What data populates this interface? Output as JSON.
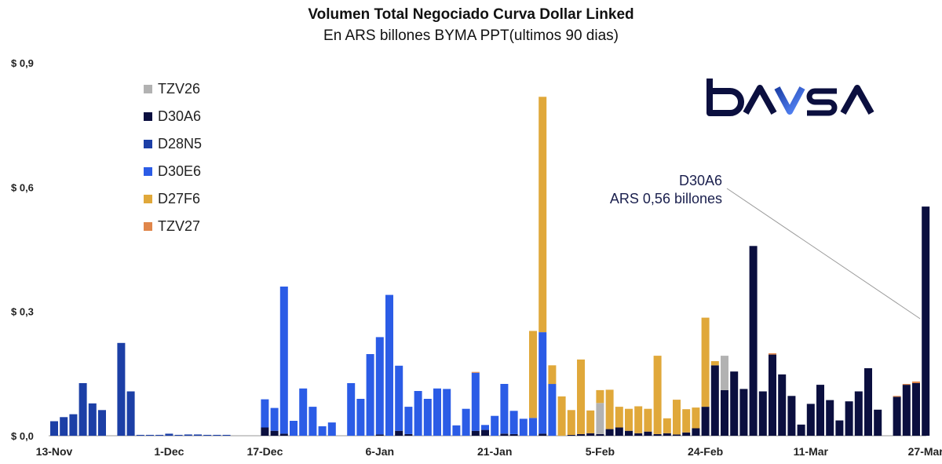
{
  "chart_data": {
    "type": "bar",
    "stacked": true,
    "title": "Volumen Total Negociado Curva Dollar Linked",
    "subtitle": "En ARS billones BYMA PPT(ultimos 90 dias)",
    "xlabel": "",
    "ylabel": "",
    "ylim": [
      0,
      0.9
    ],
    "yticks": [
      "$ 0,9",
      "$ 0,6",
      "$ 0,3",
      "$ 0,0"
    ],
    "ytick_values": [
      0.9,
      0.6,
      0.3,
      0.0
    ],
    "xtick_labels": [
      "13-Nov",
      "1-Dec",
      "17-Dec",
      "6-Jan",
      "21-Jan",
      "5-Feb",
      "24-Feb",
      "11-Mar",
      "27-Mar"
    ],
    "xtick_index": [
      0,
      12,
      22,
      34,
      46,
      57,
      68,
      79,
      91
    ],
    "series": [
      {
        "name": "TZV26",
        "color": "#b2b2b2",
        "values": [
          0,
          0,
          0,
          0,
          0,
          0,
          0,
          0,
          0,
          0,
          0,
          0,
          0,
          0,
          0,
          0,
          0,
          0,
          0,
          0,
          0,
          0,
          0,
          0,
          0,
          0,
          0,
          0,
          0,
          0,
          0,
          0,
          0,
          0,
          0,
          0,
          0,
          0,
          0,
          0,
          0,
          0,
          0,
          0,
          0,
          0,
          0,
          0,
          0,
          0,
          0,
          0,
          0,
          0,
          0,
          0,
          0,
          0.075,
          0,
          0,
          0,
          0,
          0,
          0,
          0,
          0,
          0,
          0,
          0,
          0,
          0.083,
          0,
          0,
          0,
          0,
          0,
          0,
          0,
          0,
          0,
          0,
          0,
          0,
          0,
          0,
          0,
          0,
          0,
          0,
          0,
          0,
          0
        ]
      },
      {
        "name": "D30A6",
        "color": "#0b0f3f",
        "values": [
          0,
          0,
          0,
          0,
          0,
          0,
          0,
          0,
          0,
          0,
          0,
          0,
          0,
          0,
          0,
          0,
          0,
          0,
          0,
          0,
          0,
          0,
          0.02,
          0.012,
          0.005,
          0,
          0,
          0,
          0,
          0,
          0,
          0,
          0,
          0,
          0.003,
          0,
          0.012,
          0.004,
          0,
          0,
          0,
          0,
          0,
          0,
          0.012,
          0.014,
          0,
          0.005,
          0.004,
          0,
          0,
          0.005,
          0,
          0,
          0.002,
          0.004,
          0.006,
          0.004,
          0.016,
          0.02,
          0.012,
          0.006,
          0.01,
          0.004,
          0.006,
          0.003,
          0.008,
          0.018,
          0.07,
          0.17,
          0.11,
          0.155,
          0.113,
          0.458,
          0.107,
          0.196,
          0.148,
          0.096,
          0.027,
          0.077,
          0.123,
          0.086,
          0.037,
          0.083,
          0.107,
          0.163,
          0.063,
          0,
          0.094,
          0.123,
          0.127,
          0.553
        ]
      },
      {
        "name": "D28N5",
        "color": "#1c3fa6",
        "values": [
          0.035,
          0.045,
          0.052,
          0.127,
          0.078,
          0.062,
          0,
          0.224,
          0.107,
          0.002,
          0.002,
          0.002,
          0.005,
          0.002,
          0.003,
          0.003,
          0.002,
          0.002,
          0.002,
          0,
          0,
          0,
          0,
          0,
          0,
          0,
          0,
          0,
          0,
          0,
          0,
          0,
          0,
          0,
          0,
          0,
          0,
          0,
          0,
          0,
          0,
          0,
          0,
          0,
          0,
          0,
          0,
          0,
          0,
          0,
          0,
          0,
          0,
          0,
          0,
          0,
          0,
          0,
          0,
          0,
          0,
          0,
          0,
          0,
          0,
          0,
          0,
          0,
          0,
          0,
          0,
          0,
          0,
          0,
          0,
          0,
          0,
          0,
          0,
          0,
          0,
          0,
          0,
          0,
          0,
          0,
          0,
          0,
          0,
          0,
          0,
          0
        ]
      },
      {
        "name": "D30E6",
        "color": "#2b5ce6",
        "values": [
          0,
          0,
          0,
          0,
          0,
          0,
          0,
          0,
          0,
          0,
          0,
          0,
          0,
          0,
          0,
          0,
          0,
          0,
          0,
          0,
          0,
          0,
          0.068,
          0.055,
          0.355,
          0.036,
          0.114,
          0.07,
          0.023,
          0.032,
          0,
          0.127,
          0.089,
          0.197,
          0.235,
          0.34,
          0.157,
          0.066,
          0.108,
          0.089,
          0.114,
          0.113,
          0.025,
          0.065,
          0.14,
          0.012,
          0.048,
          0.12,
          0.056,
          0.041,
          0.043,
          0.245,
          0.125,
          0,
          0,
          0,
          0,
          0,
          0,
          0,
          0,
          0,
          0,
          0,
          0,
          0,
          0,
          0,
          0,
          0,
          0,
          0,
          0,
          0,
          0,
          0,
          0,
          0,
          0,
          0,
          0,
          0,
          0,
          0,
          0,
          0,
          0,
          0,
          0,
          0,
          0,
          0
        ]
      },
      {
        "name": "D27F6",
        "color": "#e0a83a",
        "values": [
          0,
          0,
          0,
          0,
          0,
          0,
          0,
          0,
          0,
          0,
          0,
          0,
          0,
          0,
          0,
          0,
          0,
          0,
          0,
          0,
          0,
          0,
          0,
          0,
          0,
          0,
          0,
          0,
          0,
          0,
          0,
          0,
          0,
          0,
          0,
          0,
          0,
          0,
          0,
          0,
          0,
          0,
          0,
          0,
          0,
          0,
          0,
          0,
          0,
          0,
          0.21,
          0.568,
          0.045,
          0.095,
          0.06,
          0.18,
          0.055,
          0.031,
          0.095,
          0.05,
          0.053,
          0.065,
          0.055,
          0.189,
          0.036,
          0.084,
          0.056,
          0.05,
          0.215,
          0.01,
          0,
          0,
          0,
          0,
          0,
          0,
          0,
          0,
          0,
          0,
          0,
          0,
          0,
          0,
          0,
          0,
          0,
          0,
          0,
          0,
          0,
          0
        ]
      },
      {
        "name": "TZV27",
        "color": "#e0864a",
        "values": [
          0,
          0,
          0,
          0,
          0,
          0,
          0,
          0,
          0,
          0,
          0,
          0,
          0,
          0,
          0,
          0,
          0,
          0,
          0,
          0,
          0,
          0,
          0,
          0,
          0,
          0,
          0,
          0,
          0,
          0,
          0,
          0,
          0,
          0,
          0,
          0,
          0,
          0,
          0,
          0,
          0,
          0,
          0,
          0,
          0.002,
          0,
          0,
          0,
          0,
          0,
          0,
          0,
          0,
          0,
          0,
          0,
          0,
          0,
          0,
          0,
          0,
          0,
          0,
          0,
          0,
          0,
          0,
          0,
          0,
          0,
          0,
          0,
          0,
          0,
          0,
          0.003,
          0,
          0,
          0,
          0,
          0,
          0,
          0,
          0,
          0,
          0,
          0,
          0,
          0.002,
          0.002,
          0.004
        ]
      }
    ],
    "annotation": {
      "line1": "D30A6",
      "line2": "ARS 0,56 billones"
    }
  },
  "legend_title_order": [
    "TZV26",
    "D30A6",
    "D28N5",
    "D30E6",
    "D27F6",
    "TZV27"
  ],
  "logo_text": "bavsa"
}
